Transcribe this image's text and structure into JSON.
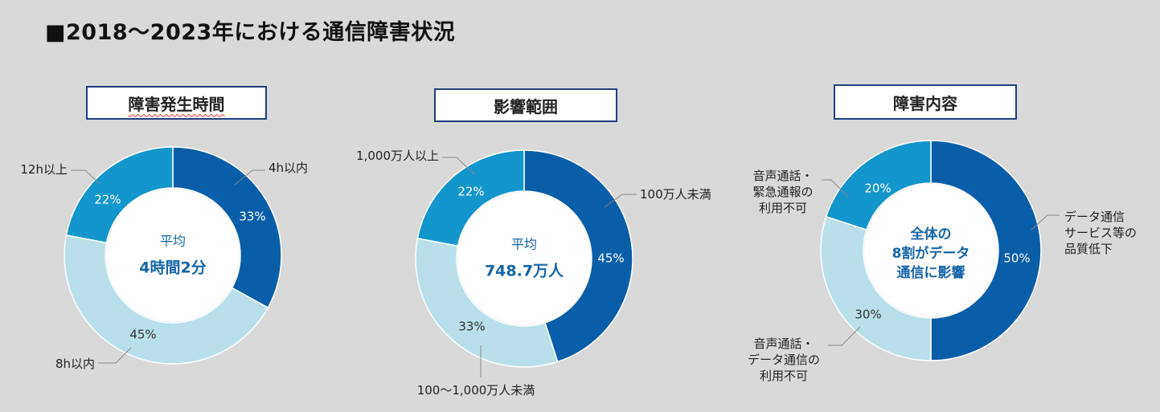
{
  "page": {
    "title": "■2018～2023年における通信障害状況"
  },
  "colors": {
    "background": "#d9d9d9",
    "box_border": "#1f3f7f",
    "dark_blue": "#0a5ea8",
    "mid_blue": "#1296cc",
    "light_blue": "#b9e0ea",
    "center_text": "#1565a8",
    "leader": "#888888"
  },
  "chart_data": [
    {
      "type": "pie",
      "title": "障害発生時間",
      "center_text": [
        "平均",
        "4時間2分"
      ],
      "slices": [
        {
          "label": "4h以内",
          "value": 33,
          "pct_label": "33%",
          "color": "#0a5ea8"
        },
        {
          "label": "8h以内",
          "value": 45,
          "pct_label": "45%",
          "color": "#b9e0ea"
        },
        {
          "label": "12h以上",
          "value": 22,
          "pct_label": "22%",
          "color": "#1296cc"
        }
      ]
    },
    {
      "type": "pie",
      "title": "影響範囲",
      "center_text": [
        "平均",
        "748.7万人"
      ],
      "slices": [
        {
          "label": "100万人未満",
          "value": 45,
          "pct_label": "45%",
          "color": "#0a5ea8"
        },
        {
          "label": "100～1,000万人未満",
          "value": 33,
          "pct_label": "33%",
          "color": "#b9e0ea"
        },
        {
          "label": "1,000万人以上",
          "value": 22,
          "pct_label": "22%",
          "color": "#1296cc"
        }
      ]
    },
    {
      "type": "pie",
      "title": "障害内容",
      "center_text": [
        "全体の",
        "8割がデータ",
        "通信に影響"
      ],
      "slices": [
        {
          "label": "データ通信\nサービス等の\n品質低下",
          "value": 50,
          "pct_label": "50%",
          "color": "#0a5ea8"
        },
        {
          "label": "音声通話・\nデータ通信の\n利用不可",
          "value": 30,
          "pct_label": "30%",
          "color": "#b9e0ea"
        },
        {
          "label": "音声通話・\n緊急通報の\n利用不可",
          "value": 20,
          "pct_label": "20%",
          "color": "#1296cc"
        }
      ]
    }
  ]
}
